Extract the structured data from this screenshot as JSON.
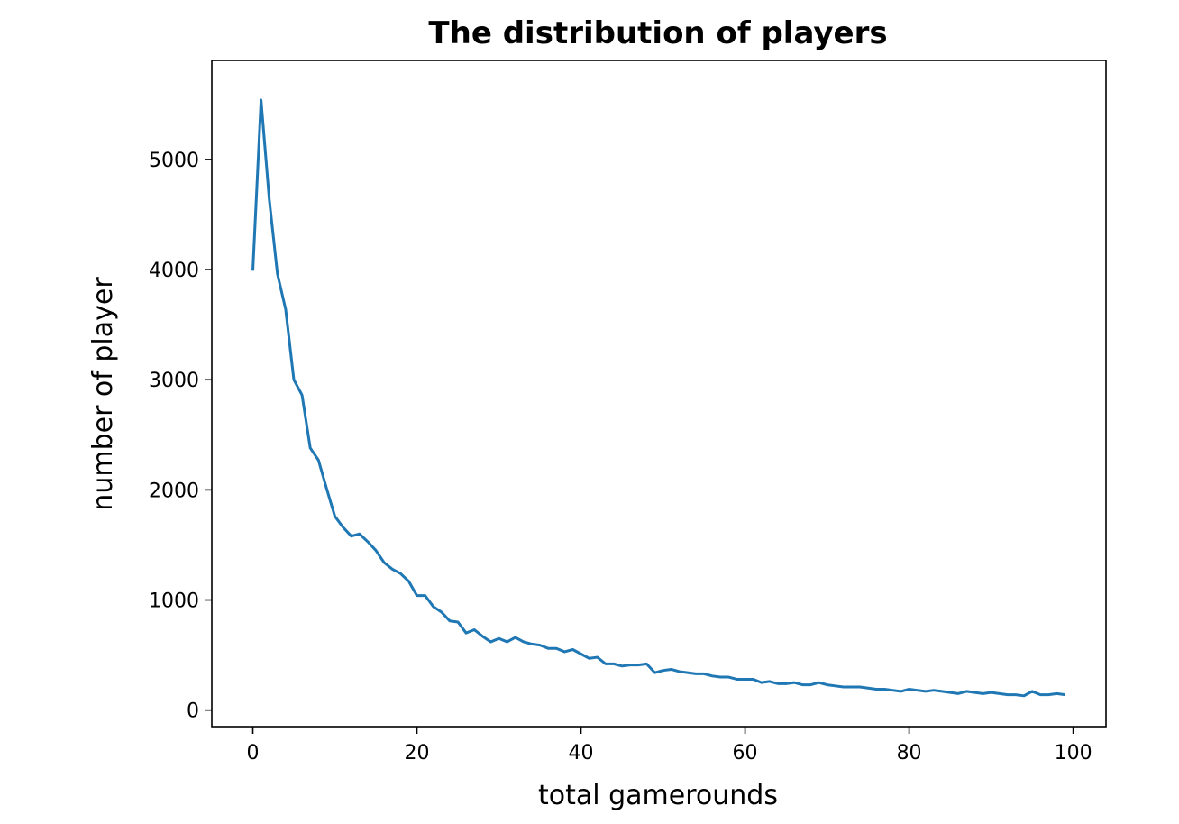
{
  "chart_data": {
    "type": "line",
    "title": "The distribution of players",
    "xlabel": "total gamerounds",
    "ylabel": "number of player",
    "xlim": [
      -5,
      104
    ],
    "ylim": [
      -150,
      5900
    ],
    "xticks": [
      0,
      20,
      40,
      60,
      80,
      100
    ],
    "yticks": [
      0,
      1000,
      2000,
      3000,
      4000,
      5000
    ],
    "grid": false,
    "legend": "none",
    "line_color": "#1f77b4",
    "series": [
      {
        "x": [
          0,
          1,
          2,
          3,
          4,
          5,
          6,
          7,
          8,
          9,
          10,
          11,
          12,
          13,
          14,
          15,
          16,
          17,
          18,
          19,
          20,
          21,
          22,
          23,
          24,
          25,
          26,
          27,
          28,
          29,
          30,
          31,
          32,
          33,
          34,
          35,
          36,
          37,
          38,
          39,
          40,
          41,
          42,
          43,
          44,
          45,
          46,
          47,
          48,
          49,
          50,
          51,
          52,
          53,
          54,
          55,
          56,
          57,
          58,
          59,
          60,
          61,
          62,
          63,
          64,
          65,
          66,
          67,
          68,
          69,
          70,
          71,
          72,
          73,
          74,
          75,
          76,
          77,
          78,
          79,
          80,
          81,
          82,
          83,
          84,
          85,
          86,
          87,
          88,
          89,
          90,
          91,
          92,
          93,
          94,
          95,
          96,
          97,
          98,
          99
        ],
        "values": [
          3990,
          5540,
          4640,
          3960,
          3640,
          3000,
          2860,
          2380,
          2270,
          2010,
          1760,
          1660,
          1580,
          1600,
          1530,
          1450,
          1340,
          1280,
          1240,
          1170,
          1040,
          1040,
          940,
          890,
          810,
          800,
          700,
          730,
          670,
          620,
          650,
          620,
          660,
          620,
          600,
          590,
          560,
          560,
          530,
          550,
          510,
          470,
          480,
          420,
          420,
          400,
          410,
          410,
          420,
          340,
          360,
          370,
          350,
          340,
          330,
          330,
          310,
          300,
          300,
          280,
          280,
          280,
          250,
          260,
          240,
          240,
          250,
          230,
          230,
          250,
          230,
          220,
          210,
          210,
          210,
          200,
          190,
          190,
          180,
          170,
          190,
          180,
          170,
          180,
          170,
          160,
          150,
          170,
          160,
          150,
          160,
          150,
          140,
          140,
          130,
          170,
          140,
          140,
          150,
          140
        ]
      }
    ]
  }
}
